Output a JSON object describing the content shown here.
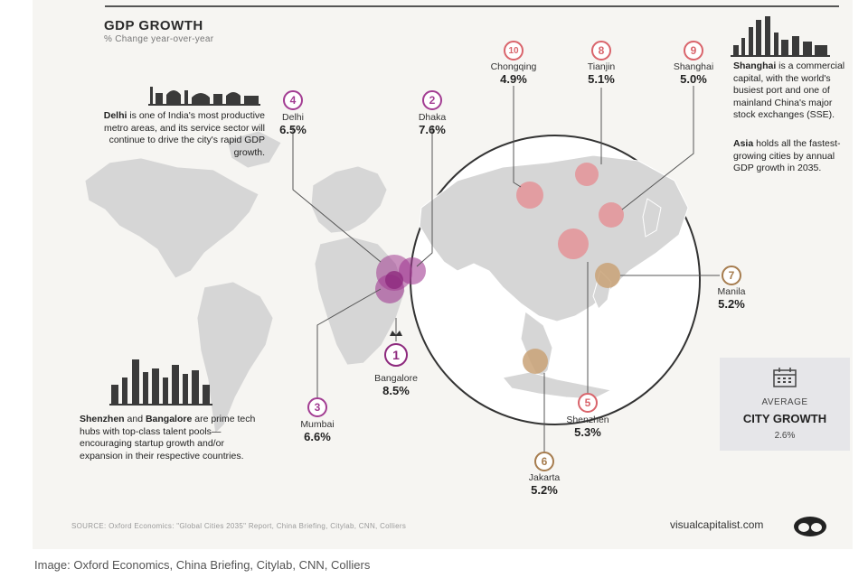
{
  "header": {
    "title": "GDP GROWTH",
    "subtitle": "% Change year-over-year"
  },
  "callouts": {
    "delhi_bold": "Delhi",
    "delhi_text": " is one of India's most productive metro areas, and its service sector will continue to drive the city's rapid GDP growth.",
    "shanghai_bold": "Shanghai",
    "shanghai_text": " is a commercial capital, with the world's busiest port and one of mainland China's major stock exchanges (SSE).",
    "asia_bold": "Asia",
    "asia_text": " holds all the fastest-growing cities by annual GDP growth in 2035.",
    "shenzhen_bold": "Shenzhen",
    "and_text": " and ",
    "bangalore_bold": "Bangalore",
    "shenzhen_text": " are prime tech hubs with top-class talent pools—encouraging startup growth and/or expansion in their respective countries."
  },
  "cities": [
    {
      "rank": "1",
      "name": "Bangalore",
      "value": "8.5%",
      "color": "#8e2a7e"
    },
    {
      "rank": "2",
      "name": "Dhaka",
      "value": "7.6%",
      "color": "#a23c92"
    },
    {
      "rank": "3",
      "name": "Mumbai",
      "value": "6.6%",
      "color": "#a23c92"
    },
    {
      "rank": "4",
      "name": "Delhi",
      "value": "6.5%",
      "color": "#a23c92"
    },
    {
      "rank": "5",
      "name": "Shenzhen",
      "value": "5.3%",
      "color": "#d9646b"
    },
    {
      "rank": "6",
      "name": "Jakarta",
      "value": "5.2%",
      "color": "#a67c4e"
    },
    {
      "rank": "7",
      "name": "Manila",
      "value": "5.2%",
      "color": "#a67c4e"
    },
    {
      "rank": "8",
      "name": "Tianjin",
      "value": "5.1%",
      "color": "#d9646b"
    },
    {
      "rank": "9",
      "name": "Shanghai",
      "value": "5.0%",
      "color": "#d9646b"
    },
    {
      "rank": "10",
      "name": "Chongqing",
      "value": "4.9%",
      "color": "#d9646b"
    }
  ],
  "average": {
    "label": "AVERAGE",
    "title": "CITY GROWTH",
    "value": "2.6%",
    "icon": "calendar-icon"
  },
  "footer": {
    "source": "SOURCE: Oxford Economics: \"Global Cities 2035\" Report, China Briefing, Citylab, CNN, Colliers",
    "brand": "visualcapitalist.com",
    "brand_icon": "visual-capitalist-logo-icon"
  },
  "caption": "Image: Oxford Economics, China Briefing, Citylab, CNN, Colliers",
  "colors": {
    "background": "#f6f5f2",
    "india": "#a23c92",
    "china": "#e58a8f",
    "southeast_asia": "#c9a277",
    "map": "#d6d6d6"
  }
}
